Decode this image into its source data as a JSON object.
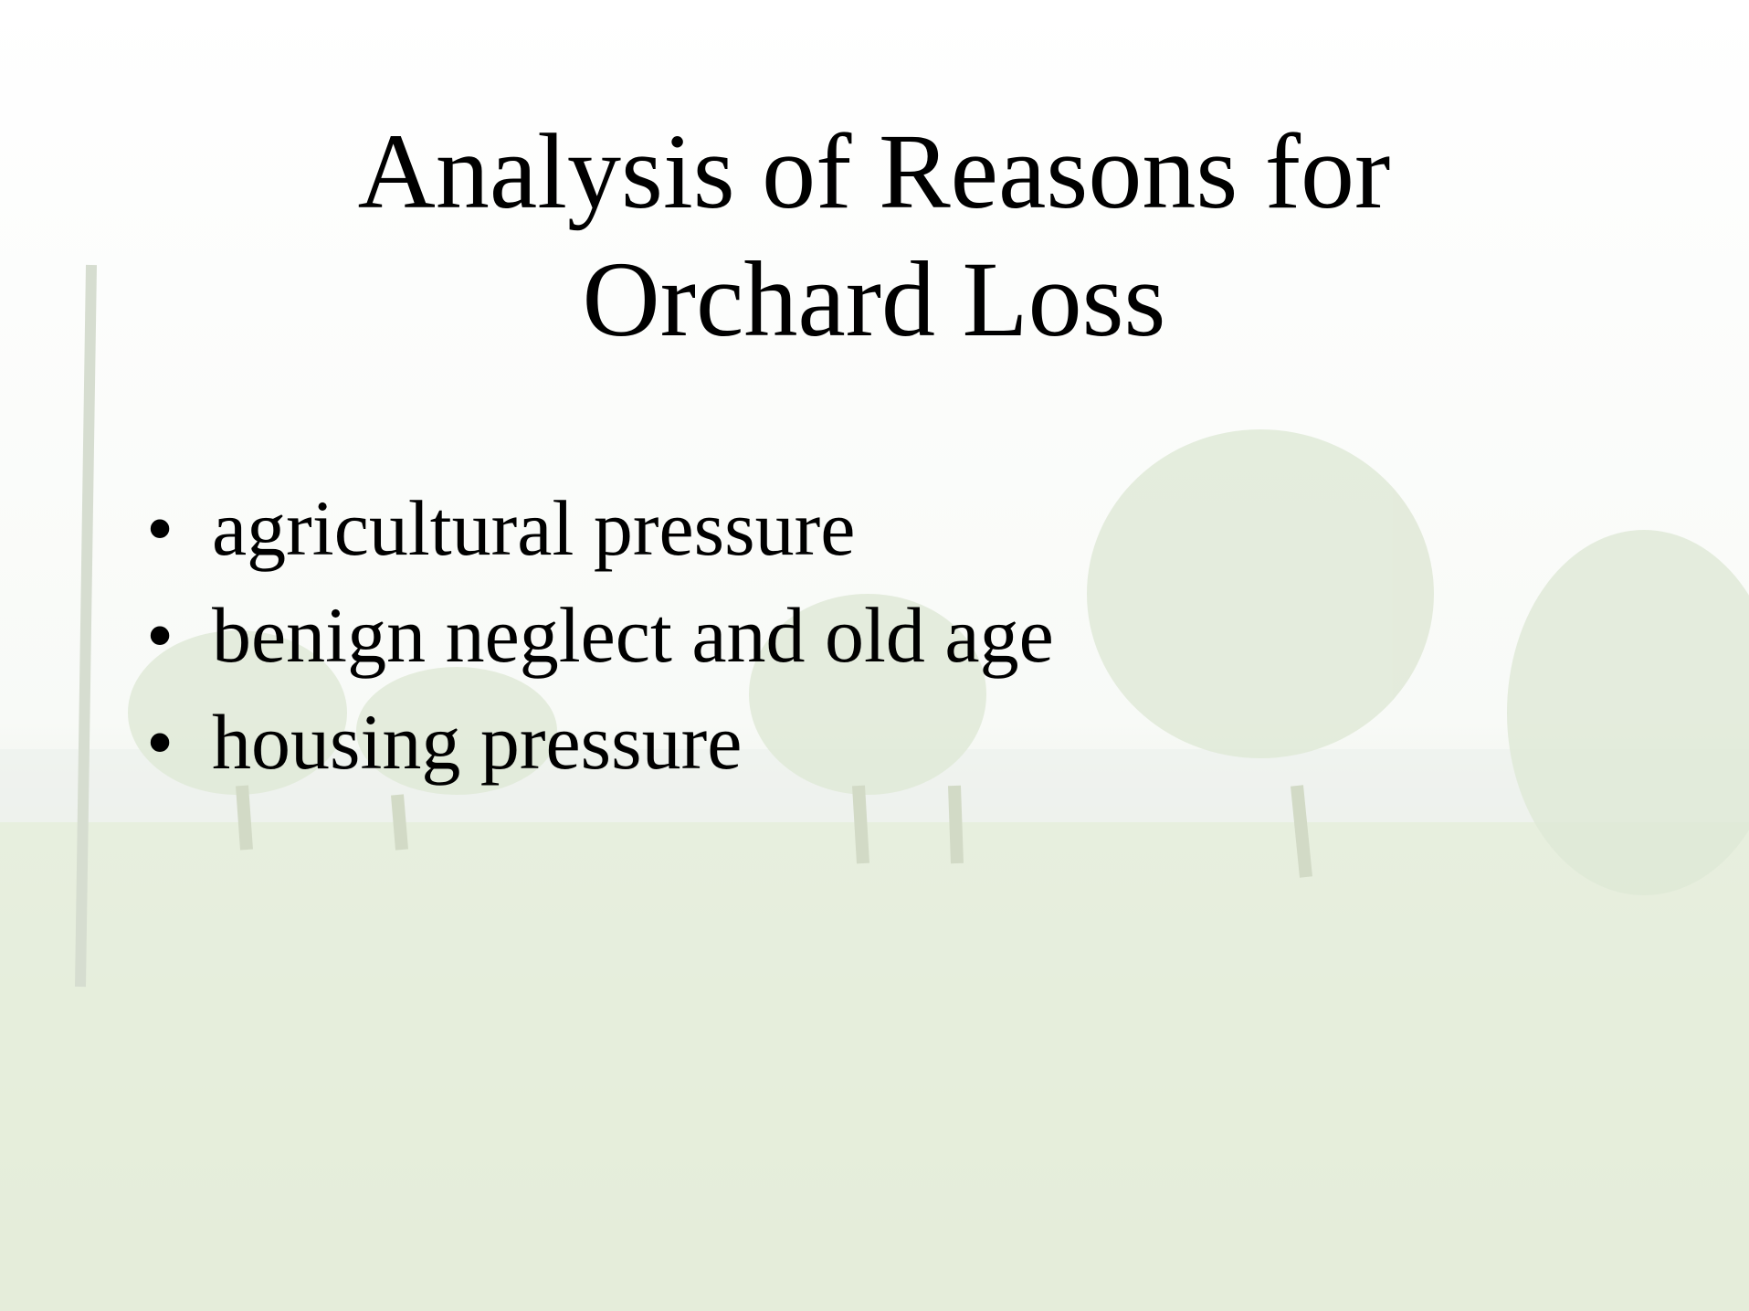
{
  "slide": {
    "title": "Analysis of Reasons for Orchard Loss",
    "bullets": [
      "agricultural pressure",
      "benign neglect and old age",
      "housing pressure"
    ]
  }
}
